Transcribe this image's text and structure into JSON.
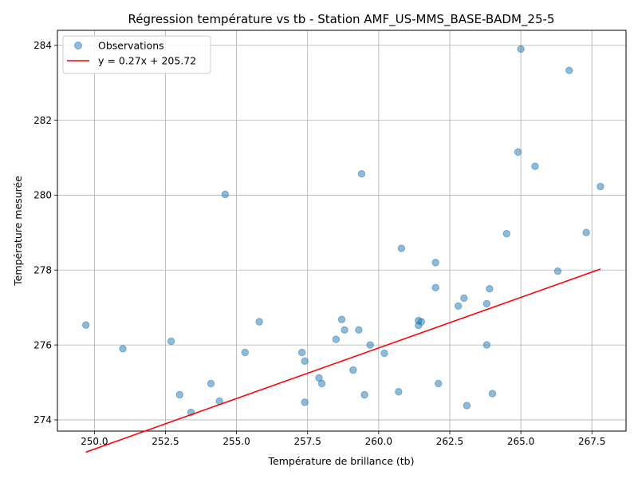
{
  "chart_data": {
    "type": "scatter",
    "title": "Régression température vs tb - Station AMF_US-MMS_BASE-BADM_25-5",
    "xlabel": "Température de brillance (tb)",
    "ylabel": "Température mesurée",
    "xlim": [
      248.7,
      268.7
    ],
    "ylim": [
      273.7,
      284.4
    ],
    "xticks": [
      "250.0",
      "252.5",
      "255.0",
      "257.5",
      "260.0",
      "262.5",
      "265.0",
      "267.5"
    ],
    "xtick_values": [
      250.0,
      252.5,
      255.0,
      257.5,
      260.0,
      262.5,
      265.0,
      267.5
    ],
    "yticks": [
      "274",
      "276",
      "278",
      "280",
      "282",
      "284"
    ],
    "ytick_values": [
      274,
      276,
      278,
      280,
      282,
      284
    ],
    "grid": true,
    "legend_position": "upper-left",
    "series": [
      {
        "name": "Observations",
        "kind": "scatter",
        "color": "#1f77b4",
        "points": [
          [
            249.7,
            276.53
          ],
          [
            251.0,
            275.9
          ],
          [
            252.7,
            276.1
          ],
          [
            253.0,
            274.67
          ],
          [
            253.4,
            274.2
          ],
          [
            254.1,
            274.97
          ],
          [
            254.4,
            274.5
          ],
          [
            254.6,
            280.02
          ],
          [
            255.3,
            275.8
          ],
          [
            255.8,
            276.62
          ],
          [
            257.3,
            275.8
          ],
          [
            257.4,
            275.57
          ],
          [
            257.4,
            274.47
          ],
          [
            257.9,
            275.12
          ],
          [
            258.0,
            274.97
          ],
          [
            258.5,
            276.15
          ],
          [
            258.7,
            276.68
          ],
          [
            258.8,
            276.4
          ],
          [
            259.1,
            275.33
          ],
          [
            259.3,
            276.4
          ],
          [
            259.4,
            280.57
          ],
          [
            259.5,
            274.67
          ],
          [
            259.7,
            276.0
          ],
          [
            260.2,
            275.78
          ],
          [
            260.7,
            274.75
          ],
          [
            260.8,
            278.58
          ],
          [
            261.4,
            276.65
          ],
          [
            261.4,
            276.52
          ],
          [
            261.5,
            276.62
          ],
          [
            262.0,
            278.2
          ],
          [
            262.0,
            277.53
          ],
          [
            262.1,
            274.97
          ],
          [
            262.8,
            277.04
          ],
          [
            263.0,
            277.25
          ],
          [
            263.1,
            274.38
          ],
          [
            263.8,
            277.1
          ],
          [
            263.8,
            276.0
          ],
          [
            263.9,
            277.5
          ],
          [
            264.0,
            274.7
          ],
          [
            264.5,
            278.97
          ],
          [
            264.9,
            281.15
          ],
          [
            265.0,
            283.9
          ],
          [
            265.5,
            280.77
          ],
          [
            266.3,
            277.97
          ],
          [
            266.7,
            283.33
          ],
          [
            267.3,
            279.0
          ],
          [
            267.8,
            280.23
          ]
        ]
      },
      {
        "name": "y = 0.27x + 205.72",
        "kind": "line",
        "color": "#ff0000",
        "x_range": [
          249.7,
          267.8
        ],
        "slope": 0.27,
        "intercept": 205.72
      }
    ]
  }
}
